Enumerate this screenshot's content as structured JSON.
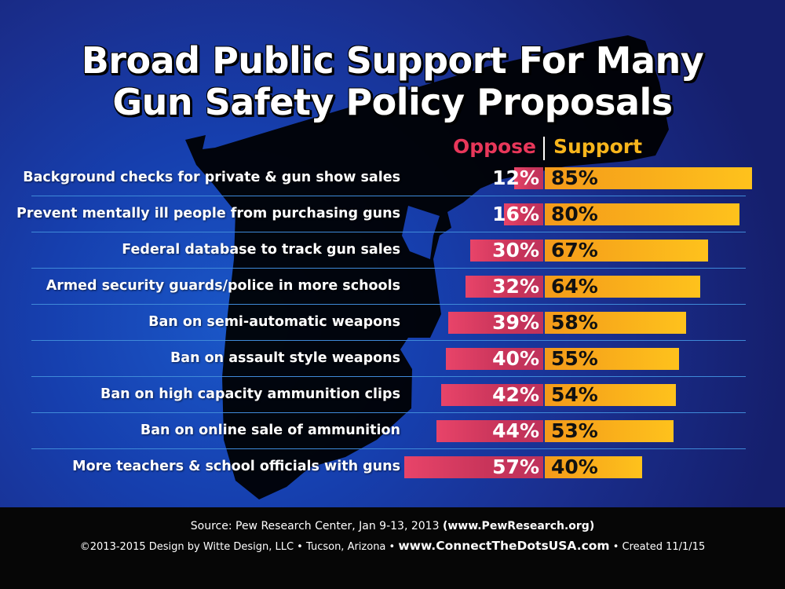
{
  "title_line1": "Broad Public Support For Many",
  "title_line2": "Gun Safety Policy Proposals",
  "chart_data": {
    "type": "bar",
    "categories": [
      "Background checks for private & gun show sales",
      "Prevent mentally ill people from purchasing guns",
      "Federal database to track gun sales",
      "Armed security guards/police in more schools",
      "Ban on semi-automatic weapons",
      "Ban on assault style weapons",
      "Ban on high capacity ammunition clips",
      "Ban on online sale of ammunition",
      "More teachers & school officials with guns"
    ],
    "series": [
      {
        "name": "Oppose",
        "values": [
          12,
          16,
          30,
          32,
          39,
          40,
          42,
          44,
          57
        ],
        "color": "#d13a5e"
      },
      {
        "name": "Support",
        "values": [
          85,
          80,
          67,
          64,
          58,
          55,
          54,
          53,
          40
        ],
        "color": "#fbb81c"
      }
    ],
    "value_suffix": "%",
    "legend": {
      "oppose": "Oppose",
      "support": "Support"
    }
  },
  "footer": {
    "source": "Source: Pew Research Center, Jan 9-13, 2013",
    "source_url": "(www.PewResearch.org)",
    "copyright": "©2013-2015 Design by Witte Design, LLC • Tucson, Arizona •",
    "site": "www.ConnectTheDotsUSA.com",
    "created": "• Created 11/1/15"
  }
}
